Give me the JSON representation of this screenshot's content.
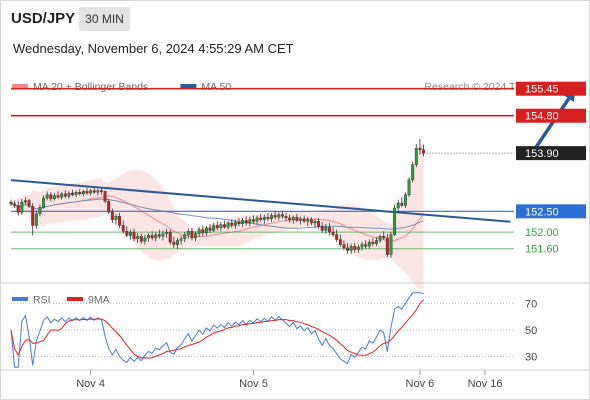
{
  "header": {
    "symbol": "USD/JPY",
    "timeframe": "30 MIN",
    "datetime": "Wednesday, November 6, 2024 4:55:29 AM CET"
  },
  "credit": "Research © 2024 Trading Central",
  "colors": {
    "bollinger": "#f08a8a",
    "ma50": "#2a5a9a",
    "resistance": "#d62020",
    "support": "#2fa33a",
    "pivot": "#2a6fd6",
    "current": "#222222",
    "rsi": "#4a78d0",
    "rsi_ma": "#dd2222",
    "arrow": "#2a5a9a"
  },
  "chart_data": [
    {
      "type": "candlestick",
      "legend": [
        {
          "name": "MA 20 + Bollinger Bands",
          "color": "#f08a8a"
        },
        {
          "name": "MA 50",
          "color": "#2a5a9a"
        }
      ],
      "legend_position": "top-left",
      "ylim": [
        150.8,
        155.9
      ],
      "levels": [
        {
          "value": 155.45,
          "label": "155.45",
          "kind": "resistance"
        },
        {
          "value": 154.8,
          "label": "154.80",
          "kind": "resistance"
        },
        {
          "value": 153.9,
          "label": "153.90",
          "kind": "current"
        },
        {
          "value": 152.5,
          "label": "152.50",
          "kind": "pivot"
        },
        {
          "value": 152.0,
          "label": "152.00",
          "kind": "support"
        },
        {
          "value": 151.6,
          "label": "151.60",
          "kind": "support"
        }
      ],
      "trend_line": {
        "from": {
          "x": 0,
          "y": 153.25
        },
        "to": {
          "x": 138,
          "y": 152.25
        }
      },
      "forecast_arrow": {
        "from": {
          "x": 144,
          "y": 153.9
        },
        "to": {
          "x": 156,
          "y": 155.45
        }
      },
      "ohlc": [
        [
          152.72,
          152.78,
          152.62,
          152.68
        ],
        [
          152.68,
          152.76,
          152.58,
          152.64
        ],
        [
          152.64,
          152.74,
          152.4,
          152.48
        ],
        [
          152.48,
          152.8,
          152.42,
          152.72
        ],
        [
          152.72,
          152.84,
          152.66,
          152.76
        ],
        [
          152.76,
          152.8,
          152.58,
          152.62
        ],
        [
          152.62,
          152.7,
          151.92,
          152.16
        ],
        [
          152.16,
          152.52,
          152.08,
          152.44
        ],
        [
          152.44,
          152.66,
          152.38,
          152.6
        ],
        [
          152.6,
          152.88,
          152.56,
          152.82
        ],
        [
          152.82,
          152.98,
          152.76,
          152.9
        ],
        [
          152.9,
          152.96,
          152.74,
          152.8
        ],
        [
          152.8,
          152.94,
          152.76,
          152.88
        ],
        [
          152.88,
          152.98,
          152.8,
          152.84
        ],
        [
          152.84,
          152.96,
          152.78,
          152.92
        ],
        [
          152.92,
          153.0,
          152.82,
          152.86
        ],
        [
          152.86,
          152.98,
          152.8,
          152.94
        ],
        [
          152.94,
          153.02,
          152.86,
          152.9
        ],
        [
          152.9,
          153.0,
          152.84,
          152.96
        ],
        [
          152.96,
          153.04,
          152.88,
          152.92
        ],
        [
          152.92,
          153.02,
          152.86,
          152.98
        ],
        [
          152.98,
          153.06,
          152.9,
          152.94
        ],
        [
          152.94,
          153.04,
          152.88,
          153.0
        ],
        [
          153.0,
          153.08,
          152.92,
          152.96
        ],
        [
          152.96,
          153.04,
          152.88,
          153.0
        ],
        [
          153.0,
          153.06,
          152.9,
          152.98
        ],
        [
          152.98,
          153.0,
          152.7,
          152.74
        ],
        [
          152.74,
          152.8,
          152.44,
          152.48
        ],
        [
          152.48,
          152.56,
          152.22,
          152.3
        ],
        [
          152.3,
          152.44,
          152.18,
          152.38
        ],
        [
          152.38,
          152.46,
          152.1,
          152.16
        ],
        [
          152.16,
          152.28,
          151.96,
          152.02
        ],
        [
          152.02,
          152.14,
          151.88,
          151.92
        ],
        [
          151.92,
          152.06,
          151.82,
          152.0
        ],
        [
          152.0,
          152.08,
          151.78,
          151.84
        ],
        [
          151.84,
          151.98,
          151.74,
          151.9
        ],
        [
          151.9,
          151.96,
          151.72,
          151.78
        ],
        [
          151.78,
          151.94,
          151.7,
          151.86
        ],
        [
          151.86,
          151.98,
          151.76,
          151.92
        ],
        [
          151.92,
          152.02,
          151.8,
          151.86
        ],
        [
          151.86,
          152.0,
          151.78,
          151.94
        ],
        [
          151.94,
          152.06,
          151.84,
          151.9
        ],
        [
          151.9,
          152.04,
          151.8,
          151.96
        ],
        [
          151.96,
          152.08,
          151.86,
          152.0
        ],
        [
          152.0,
          152.06,
          151.7,
          151.76
        ],
        [
          151.76,
          151.88,
          151.62,
          151.7
        ],
        [
          151.7,
          151.86,
          151.6,
          151.8
        ],
        [
          151.8,
          151.92,
          151.7,
          151.84
        ],
        [
          151.84,
          152.0,
          151.76,
          151.94
        ],
        [
          151.94,
          152.08,
          151.84,
          152.02
        ],
        [
          152.02,
          152.1,
          151.8,
          151.86
        ],
        [
          151.86,
          152.02,
          151.78,
          151.96
        ],
        [
          151.96,
          152.12,
          151.88,
          152.06
        ],
        [
          152.06,
          152.16,
          151.9,
          151.98
        ],
        [
          151.98,
          152.14,
          151.92,
          152.1
        ],
        [
          152.1,
          152.2,
          151.98,
          152.04
        ],
        [
          152.04,
          152.22,
          152.0,
          152.16
        ],
        [
          152.16,
          152.26,
          152.04,
          152.1
        ],
        [
          152.1,
          152.24,
          152.02,
          152.18
        ],
        [
          152.18,
          152.28,
          152.08,
          152.12
        ],
        [
          152.12,
          152.26,
          152.06,
          152.22
        ],
        [
          152.22,
          152.3,
          152.1,
          152.16
        ],
        [
          152.16,
          152.3,
          152.08,
          152.24
        ],
        [
          152.24,
          152.34,
          152.14,
          152.2
        ],
        [
          152.2,
          152.34,
          152.12,
          152.28
        ],
        [
          152.28,
          152.38,
          152.16,
          152.22
        ],
        [
          152.22,
          152.36,
          152.14,
          152.3
        ],
        [
          152.3,
          152.4,
          152.2,
          152.26
        ],
        [
          152.26,
          152.4,
          152.18,
          152.34
        ],
        [
          152.34,
          152.44,
          152.24,
          152.3
        ],
        [
          152.3,
          152.42,
          152.2,
          152.36
        ],
        [
          152.36,
          152.46,
          152.26,
          152.32
        ],
        [
          152.32,
          152.46,
          152.24,
          152.4
        ],
        [
          152.4,
          152.5,
          152.3,
          152.36
        ],
        [
          152.36,
          152.48,
          152.28,
          152.42
        ],
        [
          152.42,
          152.52,
          152.32,
          152.38
        ],
        [
          152.38,
          152.46,
          152.26,
          152.34
        ],
        [
          152.34,
          152.42,
          152.22,
          152.3
        ],
        [
          152.3,
          152.4,
          152.2,
          152.36
        ],
        [
          152.36,
          152.44,
          152.24,
          152.28
        ],
        [
          152.28,
          152.38,
          152.18,
          152.32
        ],
        [
          152.32,
          152.4,
          152.22,
          152.26
        ],
        [
          152.26,
          152.36,
          152.14,
          152.3
        ],
        [
          152.3,
          152.36,
          152.16,
          152.22
        ],
        [
          152.22,
          152.32,
          152.1,
          152.26
        ],
        [
          152.26,
          152.34,
          152.08,
          152.14
        ],
        [
          152.14,
          152.24,
          151.98,
          152.04
        ],
        [
          152.04,
          152.2,
          151.96,
          152.12
        ],
        [
          152.12,
          152.22,
          151.92,
          152.0
        ],
        [
          152.0,
          152.12,
          151.88,
          151.94
        ],
        [
          151.94,
          152.06,
          151.76,
          151.82
        ],
        [
          151.82,
          151.94,
          151.64,
          151.7
        ],
        [
          151.7,
          151.8,
          151.56,
          151.62
        ],
        [
          151.62,
          151.74,
          151.48,
          151.56
        ],
        [
          151.56,
          151.72,
          151.48,
          151.66
        ],
        [
          151.66,
          151.74,
          151.5,
          151.58
        ],
        [
          151.58,
          151.7,
          151.5,
          151.64
        ],
        [
          151.64,
          151.76,
          151.56,
          151.7
        ],
        [
          151.7,
          151.8,
          151.6,
          151.66
        ],
        [
          151.66,
          151.82,
          151.6,
          151.76
        ],
        [
          151.76,
          151.86,
          151.66,
          151.72
        ],
        [
          151.72,
          151.88,
          151.66,
          151.8
        ],
        [
          151.8,
          151.94,
          151.74,
          151.9
        ],
        [
          151.9,
          152.02,
          151.82,
          151.86
        ],
        [
          151.86,
          151.96,
          151.4,
          151.46
        ],
        [
          151.46,
          152.0,
          151.38,
          151.94
        ],
        [
          151.94,
          152.66,
          151.9,
          152.58
        ],
        [
          152.58,
          152.78,
          152.48,
          152.7
        ],
        [
          152.7,
          152.84,
          152.6,
          152.64
        ],
        [
          152.64,
          152.96,
          152.58,
          152.9
        ],
        [
          152.9,
          153.32,
          152.84,
          153.26
        ],
        [
          153.26,
          153.7,
          153.2,
          153.62
        ],
        [
          153.62,
          154.12,
          153.56,
          154.02
        ],
        [
          154.02,
          154.24,
          153.86,
          153.98
        ],
        [
          153.98,
          154.1,
          153.82,
          153.9
        ]
      ],
      "candle_spacing_bars": 1
    },
    {
      "type": "line",
      "legend": [
        {
          "name": "RSI",
          "color": "#4a78d0"
        },
        {
          "name": "9MA",
          "color": "#dd2222"
        }
      ],
      "ylim": [
        20,
        80
      ],
      "yticks": [
        70,
        50,
        30
      ],
      "xlabels": [
        {
          "label": "Nov 4",
          "x": 22
        },
        {
          "label": "Nov 5",
          "x": 67
        },
        {
          "label": "Nov 6",
          "x": 113
        },
        {
          "label": "Nov 16",
          "x": 131
        }
      ],
      "xlim": [
        0,
        139
      ]
    }
  ]
}
